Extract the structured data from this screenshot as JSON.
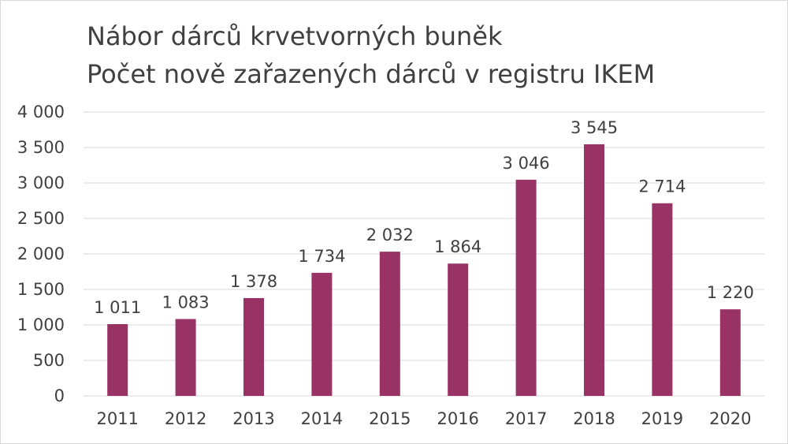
{
  "chart_data": {
    "type": "bar",
    "title": "Nábor dárců krvetvorných buněk",
    "subtitle": "Počet nově zařazených dárců v registru IKEM",
    "categories": [
      "2011",
      "2012",
      "2013",
      "2014",
      "2015",
      "2016",
      "2017",
      "2018",
      "2019",
      "2020"
    ],
    "values": [
      1011,
      1083,
      1378,
      1734,
      2032,
      1864,
      3046,
      3545,
      2714,
      1220
    ],
    "value_labels": [
      "1 011",
      "1 083",
      "1 378",
      "1 734",
      "2 032",
      "1 864",
      "3 046",
      "3 545",
      "2 714",
      "1 220"
    ],
    "y_ticks": [
      0,
      500,
      1000,
      1500,
      2000,
      2500,
      3000,
      3500,
      4000
    ],
    "y_tick_labels": [
      "0",
      "500",
      "1 000",
      "1 500",
      "2 000",
      "2 500",
      "3 000",
      "3 500",
      "4 000"
    ],
    "ylim": [
      0,
      4000
    ],
    "xlabel": "",
    "ylabel": "",
    "grid": true,
    "legend": "none",
    "bar_color": "#993366",
    "grid_color": "#d9d9d9"
  }
}
